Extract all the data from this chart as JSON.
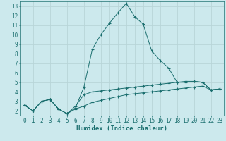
{
  "xlabel": "Humidex (Indice chaleur)",
  "bg_color": "#cce9ed",
  "grid_color": "#b8d5d8",
  "line_color": "#1a6e6e",
  "xlim": [
    -0.5,
    23.5
  ],
  "ylim": [
    1.5,
    13.5
  ],
  "xticks": [
    0,
    1,
    2,
    3,
    4,
    5,
    6,
    7,
    8,
    9,
    10,
    11,
    12,
    13,
    14,
    15,
    16,
    17,
    18,
    19,
    20,
    21,
    22,
    23
  ],
  "yticks": [
    2,
    3,
    4,
    5,
    6,
    7,
    8,
    9,
    10,
    11,
    12,
    13
  ],
  "lines": [
    {
      "x": [
        0,
        1,
        2,
        3,
        4,
        5,
        6,
        7,
        8,
        9,
        10,
        11,
        12,
        13,
        14,
        15,
        16,
        17,
        18,
        19,
        20,
        21,
        22,
        23
      ],
      "y": [
        2.6,
        2.0,
        3.0,
        3.2,
        2.2,
        1.7,
        2.3,
        4.5,
        8.5,
        10.0,
        11.2,
        12.3,
        13.3,
        11.9,
        11.1,
        8.3,
        7.3,
        6.5,
        5.0,
        5.0,
        5.1,
        5.0,
        4.2,
        4.3
      ]
    },
    {
      "x": [
        0,
        1,
        2,
        3,
        4,
        5,
        6,
        7,
        8,
        9,
        10,
        11,
        12,
        13,
        14,
        15,
        16,
        17,
        18,
        19,
        20,
        21,
        22,
        23
      ],
      "y": [
        2.6,
        2.0,
        3.0,
        3.2,
        2.2,
        1.7,
        2.5,
        3.7,
        4.0,
        4.1,
        4.2,
        4.3,
        4.4,
        4.5,
        4.6,
        4.7,
        4.8,
        4.9,
        5.0,
        5.1,
        5.1,
        5.0,
        4.2,
        4.3
      ]
    },
    {
      "x": [
        0,
        1,
        2,
        3,
        4,
        5,
        6,
        7,
        8,
        9,
        10,
        11,
        12,
        13,
        14,
        15,
        16,
        17,
        18,
        19,
        20,
        21,
        22,
        23
      ],
      "y": [
        2.6,
        2.0,
        3.0,
        3.2,
        2.2,
        1.7,
        2.2,
        2.5,
        2.9,
        3.1,
        3.3,
        3.5,
        3.7,
        3.8,
        3.9,
        4.0,
        4.1,
        4.2,
        4.3,
        4.4,
        4.5,
        4.6,
        4.2,
        4.3
      ]
    }
  ]
}
